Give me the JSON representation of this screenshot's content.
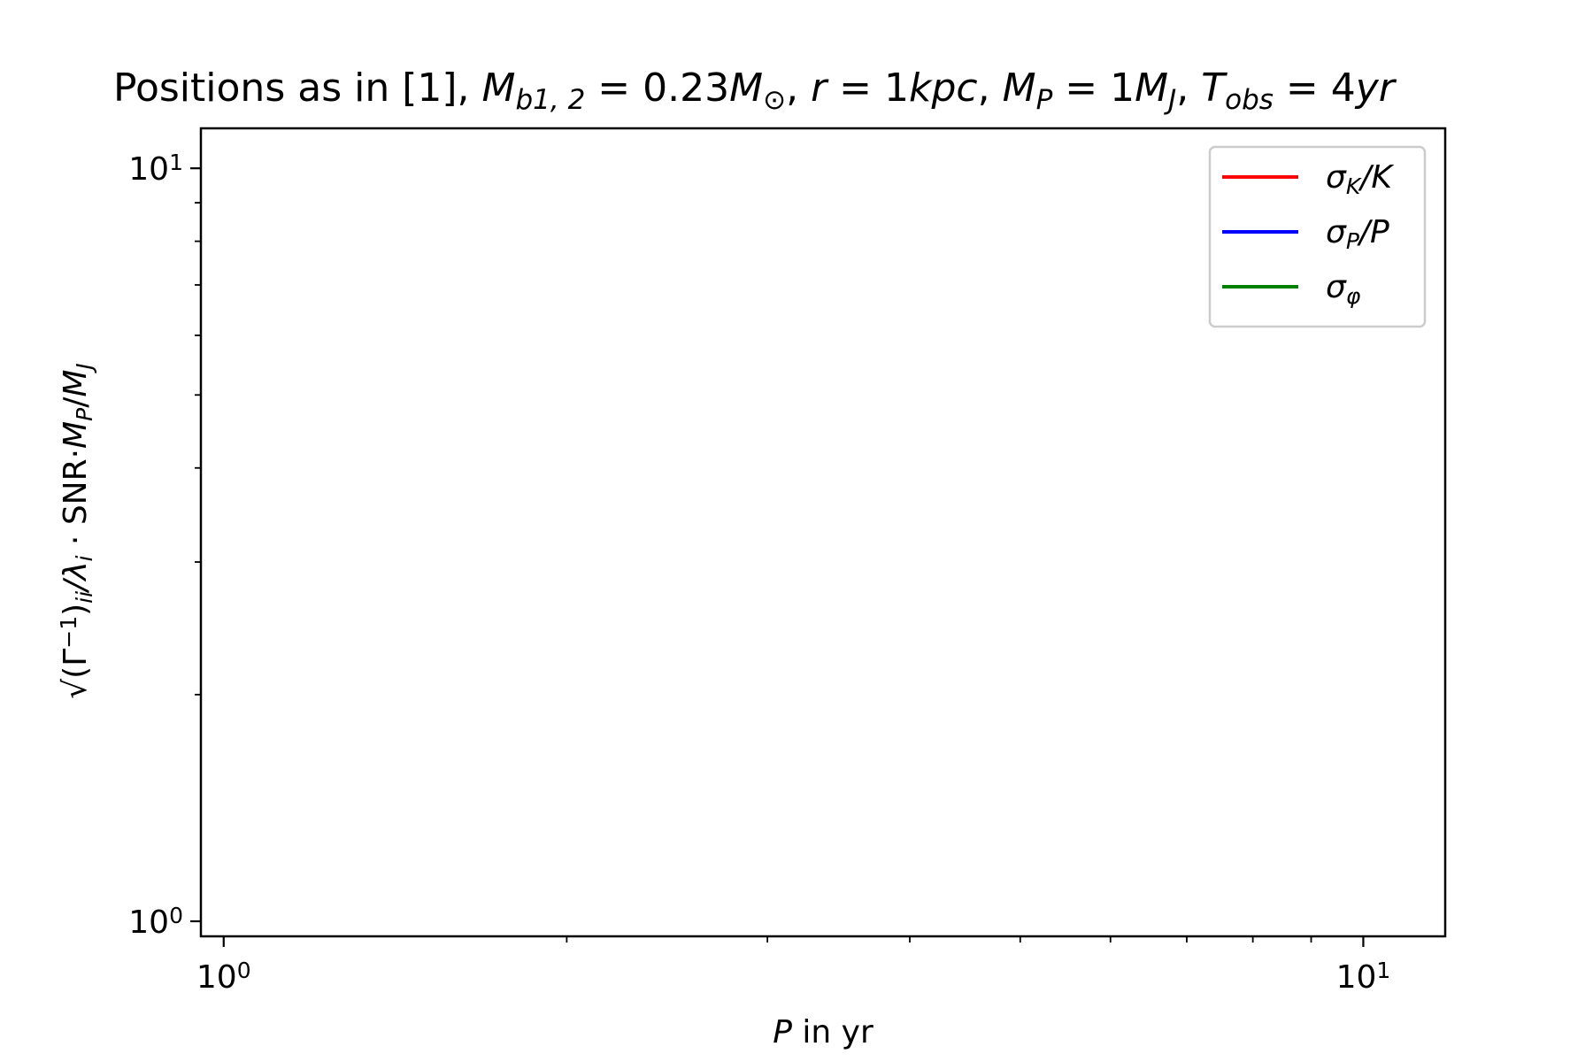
{
  "chart_data": {
    "type": "line",
    "title": {
      "prefix": "Positions as in [1], ",
      "parts": [
        {
          "t": "M",
          "i": true
        },
        {
          "t": "b1, 2",
          "i": true,
          "sub": true
        },
        {
          "t": " = 0.23",
          "i": false
        },
        {
          "t": "M",
          "i": true
        },
        {
          "t": "⊙",
          "i": false,
          "sub": true
        },
        {
          "t": ", ",
          "i": false
        },
        {
          "t": "r",
          "i": true
        },
        {
          "t": " = 1",
          "i": false
        },
        {
          "t": "kpc",
          "i": true
        },
        {
          "t": ", ",
          "i": false
        },
        {
          "t": "M",
          "i": true
        },
        {
          "t": "P",
          "i": true,
          "sub": true
        },
        {
          "t": " = 1",
          "i": false
        },
        {
          "t": "M",
          "i": true
        },
        {
          "t": "J",
          "i": true,
          "sub": true
        },
        {
          "t": ", ",
          "i": false
        },
        {
          "t": "T",
          "i": true
        },
        {
          "t": "obs",
          "i": true,
          "sub": true
        },
        {
          "t": " = 4",
          "i": false
        },
        {
          "t": "yr",
          "i": true
        }
      ]
    },
    "xlabel": {
      "var": "P",
      "rest": " in yr"
    },
    "ylabel": {
      "parts": [
        {
          "t": "√",
          "i": false
        },
        {
          "t": "(Γ",
          "i": false
        },
        {
          "t": "−1",
          "i": false,
          "sup": true
        },
        {
          "t": ")",
          "i": false
        },
        {
          "t": "ii",
          "i": true,
          "sub": true
        },
        {
          "t": "/λ",
          "i": true
        },
        {
          "t": "i",
          "i": true,
          "sub": true
        },
        {
          "t": " · SNR·",
          "i": false
        },
        {
          "t": "M",
          "i": true
        },
        {
          "t": "P",
          "i": true,
          "sub": true
        },
        {
          "t": "/",
          "i": false
        },
        {
          "t": "M",
          "i": true
        },
        {
          "t": "J",
          "i": true,
          "sub": true
        }
      ]
    },
    "xscale": "log",
    "yscale": "log",
    "xlim": [
      0.955,
      11.8
    ],
    "ylim": [
      0.955,
      11.3
    ],
    "x_major_ticks": [
      {
        "value": 1,
        "base": "10",
        "exp": "0"
      },
      {
        "value": 10,
        "base": "10",
        "exp": "1"
      }
    ],
    "y_major_ticks": [
      {
        "value": 1,
        "base": "10",
        "exp": "0"
      },
      {
        "value": 10,
        "base": "10",
        "exp": "1"
      }
    ],
    "x_minor_ticks": [
      2,
      3,
      4,
      5,
      6,
      7,
      8,
      9
    ],
    "y_minor_ticks": [
      2,
      3,
      4,
      5,
      6,
      7,
      8,
      9
    ],
    "grid": false,
    "legend_position": "top-right",
    "series": [
      {
        "name": "σK/K",
        "label": [
          {
            "t": "σ",
            "i": true
          },
          {
            "t": "K",
            "i": true,
            "sub": true
          },
          {
            "t": "/K",
            "i": true
          }
        ],
        "color": "#ff0000",
        "values": []
      },
      {
        "name": "σP/P",
        "label": [
          {
            "t": "σ",
            "i": true
          },
          {
            "t": "P",
            "i": true,
            "sub": true
          },
          {
            "t": "/P",
            "i": true
          }
        ],
        "color": "#0000ff",
        "values": []
      },
      {
        "name": "σφ",
        "label": [
          {
            "t": "σ",
            "i": true
          },
          {
            "t": "φ",
            "i": true,
            "sub": true
          }
        ],
        "color": "#008000",
        "values": []
      }
    ]
  }
}
